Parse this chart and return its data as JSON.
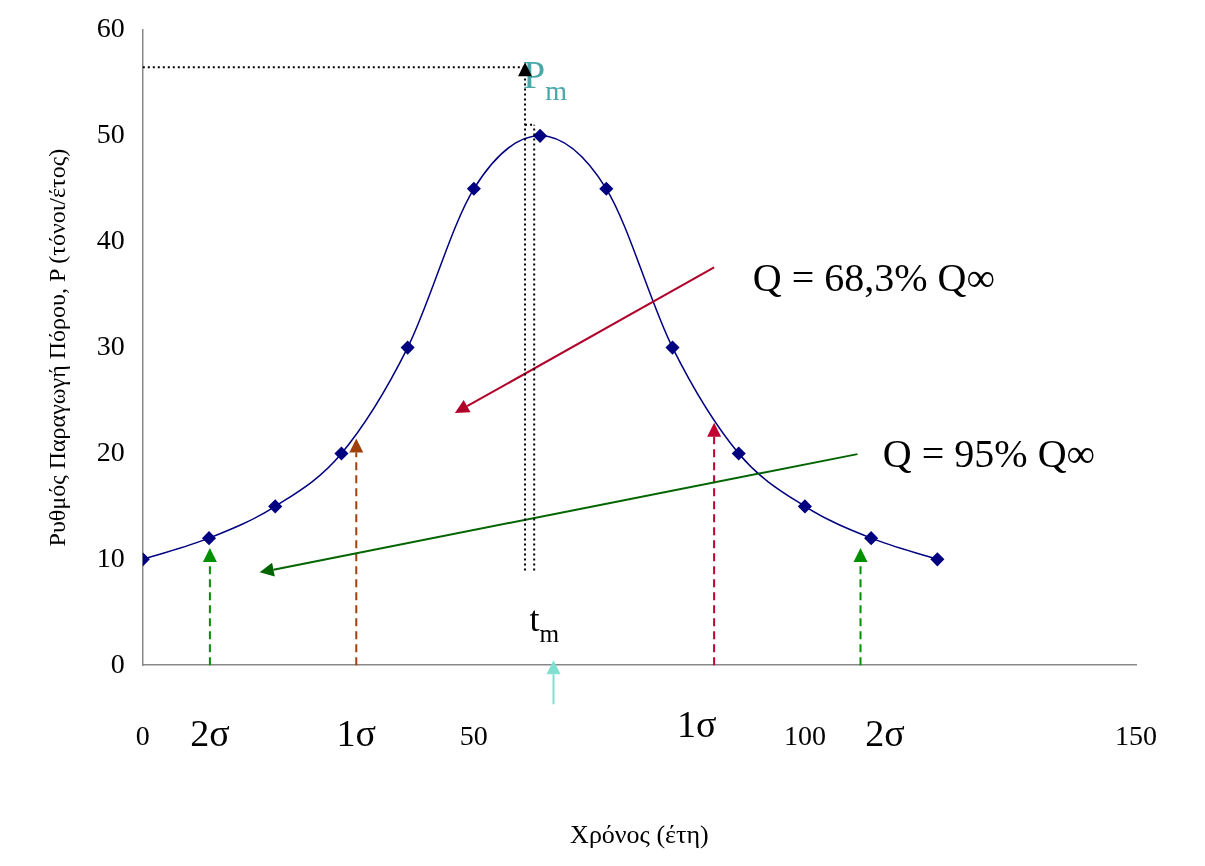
{
  "chart_data": {
    "type": "line",
    "xlabel": "Χρόνος (έτη)",
    "ylabel": "Ρυθμός Παραγωγή Πόρου, P (τόνοι/έτος)",
    "x": [
      0,
      10,
      20,
      30,
      40,
      50,
      60,
      70,
      80,
      90,
      100,
      110,
      120
    ],
    "series": [
      {
        "color": "#000080",
        "values": [
          10,
          12,
          15,
          20,
          30,
          45,
          50,
          45,
          30,
          20,
          15,
          12,
          10
        ]
      }
    ],
    "xlim": [
      0,
      150
    ],
    "xticks": [
      0,
      50,
      100,
      150
    ],
    "ylim": [
      0,
      60
    ],
    "yticks": [
      0,
      10,
      20,
      30,
      40,
      50,
      60
    ],
    "grid": false,
    "legend": false,
    "marker": "diamond",
    "line_style": "solid",
    "annotations": [
      "P$_{m}$",
      "t$_{m}$",
      "Q = 68,3% Q∞",
      "Q = 95% Q∞",
      "2σ",
      "1σ",
      "1σ",
      "2σ"
    ]
  }
}
